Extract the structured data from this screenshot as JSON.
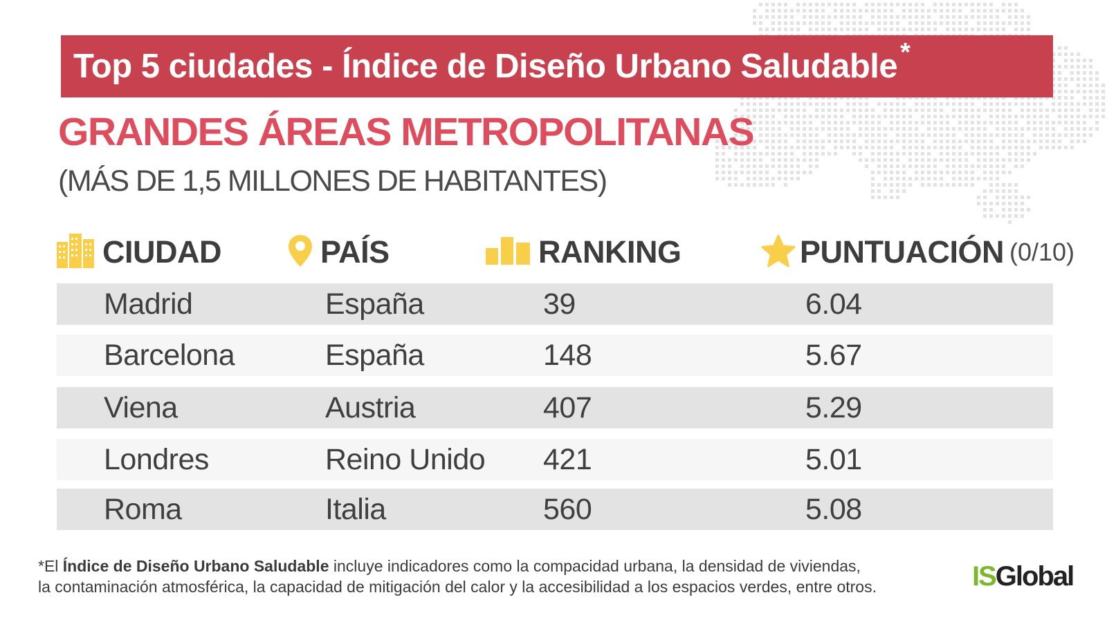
{
  "banner": {
    "title": "Top 5 ciudades - Índice de Diseño Urbano Saludable",
    "asterisk": "*"
  },
  "subtitle": "GRANDES ÁREAS METROPOLITANAS",
  "subnote": "(MÁS DE 1,5 MILLONES DE HABITANTES)",
  "table": {
    "headers": {
      "ciudad": "CIUDAD",
      "pais": "PAÍS",
      "ranking": "RANKING",
      "puntuacion": "PUNTUACIÓN",
      "puntuacion_scale": "(0/10)"
    },
    "rows": [
      {
        "ciudad": "Madrid",
        "pais": "España",
        "ranking": "39",
        "puntuacion": "6.04"
      },
      {
        "ciudad": "Barcelona",
        "pais": "España",
        "ranking": "148",
        "puntuacion": "5.67"
      },
      {
        "ciudad": "Viena",
        "pais": "Austria",
        "ranking": "407",
        "puntuacion": "5.29"
      },
      {
        "ciudad": "Londres",
        "pais": "Reino Unido",
        "ranking": "421",
        "puntuacion": "5.01"
      },
      {
        "ciudad": "Roma",
        "pais": "Italia",
        "ranking": "560",
        "puntuacion": "5.08"
      }
    ]
  },
  "footnote": {
    "prefix": "*El ",
    "bold": "Índice de Diseño Urbano Saludable",
    "line1_rest": " incluye indicadores como la compacidad urbana, la densidad de viviendas,",
    "line2": "la contaminación atmosférica, la capacidad de mitigación del calor y la accesibilidad a los espacios verdes, entre otros."
  },
  "logo": {
    "part1": "IS",
    "part2": "Global"
  },
  "colors": {
    "banner": "#c8414f",
    "subtitle": "#de4d5d",
    "icon": "#f9cf4a",
    "logo_green": "#7cb82a"
  },
  "icons": {
    "ciudad": "buildings-icon",
    "pais": "location-pin-icon",
    "ranking": "bar-chart-icon",
    "puntuacion": "star-icon"
  }
}
